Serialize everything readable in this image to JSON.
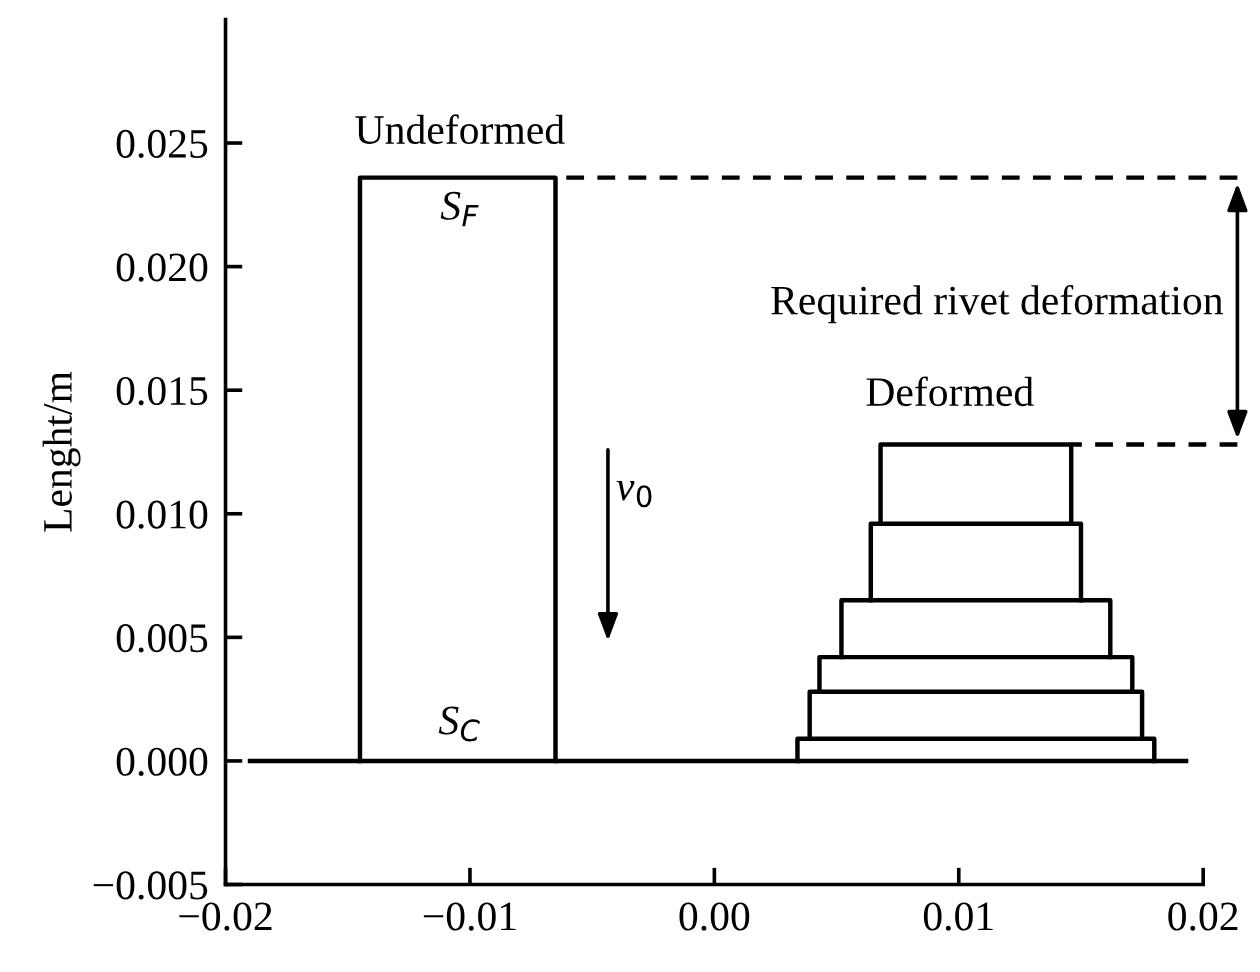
{
  "chart_data": {
    "type": "line",
    "ylabel": "Lenght/m",
    "xlim": [
      -0.02,
      0.0215
    ],
    "ylim": [
      -0.005,
      0.03
    ],
    "xticks": [
      {
        "value": -0.02,
        "label": "−0.02"
      },
      {
        "value": -0.01,
        "label": "−0.01"
      },
      {
        "value": 0,
        "label": "0.00"
      },
      {
        "value": 0.01,
        "label": "0.01"
      },
      {
        "value": 0.02,
        "label": "0.02"
      }
    ],
    "yticks": [
      {
        "value": -0.005,
        "label": "−0.005"
      },
      {
        "value": 0,
        "label": "0.000"
      },
      {
        "value": 0.005,
        "label": "0.005"
      },
      {
        "value": 0.01,
        "label": "0.010"
      },
      {
        "value": 0.015,
        "label": "0.015"
      },
      {
        "value": 0.02,
        "label": "0.020"
      },
      {
        "value": 0.025,
        "label": "0.025"
      }
    ],
    "grid": false,
    "legend": false,
    "marker": "none",
    "series": [
      {
        "color": "#000000",
        "x": [
          -0.019,
          0.0193
        ],
        "values": [
          0,
          0
        ]
      },
      {
        "color": "#000000",
        "x": [
          -0.0145,
          -0.0145,
          -0.0065,
          -0.0065
        ],
        "values": [
          0,
          0.0236,
          0.0236,
          0
        ]
      },
      {
        "color": "#000000",
        "x": [
          0.0034,
          0.0034,
          0.018,
          0.018
        ],
        "values": [
          0,
          0.0009,
          0.0009,
          0
        ]
      },
      {
        "color": "#000000",
        "x": [
          0.0039,
          0.0039,
          0.0175,
          0.0175
        ],
        "values": [
          0.0009,
          0.0028,
          0.0028,
          0.0009
        ]
      },
      {
        "color": "#000000",
        "x": [
          0.0043,
          0.0043,
          0.0171,
          0.0171
        ],
        "values": [
          0.0028,
          0.0042,
          0.0042,
          0.0028
        ]
      },
      {
        "color": "#000000",
        "x": [
          0.0052,
          0.0052,
          0.0162,
          0.0162
        ],
        "values": [
          0.0042,
          0.0065,
          0.0065,
          0.0042
        ]
      },
      {
        "color": "#000000",
        "x": [
          0.0064,
          0.0064,
          0.015,
          0.015
        ],
        "values": [
          0.0065,
          0.0096,
          0.0096,
          0.0065
        ]
      },
      {
        "color": "#000000",
        "x": [
          0.0068,
          0.0068,
          0.0146,
          0.0146
        ],
        "values": [
          0.0096,
          0.0128,
          0.0128,
          0.0096
        ]
      },
      {
        "color": "#000000",
        "line_style": "dashed",
        "x": [
          0.0214,
          -0.0065
        ],
        "values": [
          0.0236,
          0.0236
        ]
      },
      {
        "color": "#000000",
        "line_style": "dashed",
        "x": [
          0.0214,
          0.0146
        ],
        "values": [
          0.0128,
          0.0128
        ]
      }
    ],
    "annotations": [
      "Undeformed",
      "S$_{F}$",
      "S$_{C}$",
      "v$_{0}$",
      "Deformed",
      "Required rivet deformation"
    ]
  }
}
